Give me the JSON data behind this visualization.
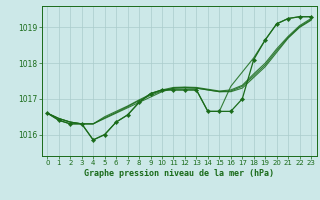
{
  "title": "Graphe pression niveau de la mer (hPa)",
  "background_color": "#cce8e8",
  "grid_color": "#aacccc",
  "line_color": "#1a6b1a",
  "marker_color": "#1a6b1a",
  "xlim": [
    -0.5,
    23.5
  ],
  "ylim": [
    1015.4,
    1019.6
  ],
  "yticks": [
    1016,
    1017,
    1018,
    1019
  ],
  "xticks": [
    0,
    1,
    2,
    3,
    4,
    5,
    6,
    7,
    8,
    9,
    10,
    11,
    12,
    13,
    14,
    15,
    16,
    17,
    18,
    19,
    20,
    21,
    22,
    23
  ],
  "hours": [
    0,
    1,
    2,
    3,
    4,
    5,
    6,
    7,
    8,
    9,
    10,
    11,
    12,
    13,
    14,
    15,
    16,
    17,
    18,
    19,
    20,
    21,
    22,
    23
  ],
  "series_smooth1": [
    1016.6,
    1016.45,
    1016.35,
    1016.3,
    1016.3,
    1016.45,
    1016.6,
    1016.75,
    1016.9,
    1017.05,
    1017.2,
    1017.3,
    1017.3,
    1017.3,
    1017.25,
    1017.2,
    1017.2,
    1017.3,
    1017.6,
    1017.9,
    1018.3,
    1018.7,
    1019.0,
    1019.2
  ],
  "series_smooth2": [
    1016.6,
    1016.45,
    1016.35,
    1016.3,
    1016.3,
    1016.47,
    1016.62,
    1016.78,
    1016.95,
    1017.1,
    1017.22,
    1017.3,
    1017.32,
    1017.3,
    1017.25,
    1017.2,
    1017.22,
    1017.35,
    1017.65,
    1017.95,
    1018.35,
    1018.72,
    1019.02,
    1019.22
  ],
  "series_smooth3": [
    1016.6,
    1016.45,
    1016.35,
    1016.3,
    1016.3,
    1016.5,
    1016.65,
    1016.8,
    1016.97,
    1017.13,
    1017.25,
    1017.32,
    1017.33,
    1017.32,
    1017.27,
    1017.22,
    1017.25,
    1017.38,
    1017.7,
    1018.0,
    1018.4,
    1018.75,
    1019.05,
    1019.25
  ],
  "main_series": [
    1016.6,
    1016.4,
    1016.3,
    1016.3,
    1015.85,
    1016.0,
    1016.35,
    1016.55,
    1016.9,
    1017.15,
    1017.25,
    1017.25,
    1017.25,
    1017.25,
    1016.65,
    1016.65,
    1016.65,
    1017.0,
    1018.1,
    1018.65,
    1019.1,
    1019.25,
    1019.3,
    1019.3
  ],
  "series_wide": [
    1016.6,
    1016.4,
    1016.3,
    1016.3,
    1015.85,
    1016.0,
    1016.35,
    1016.55,
    1016.9,
    1017.15,
    1017.25,
    1017.25,
    1017.25,
    1017.25,
    1016.65,
    1016.65,
    1017.35,
    1017.75,
    1018.15,
    1018.65,
    1019.1,
    1019.25,
    1019.3,
    1019.3
  ]
}
